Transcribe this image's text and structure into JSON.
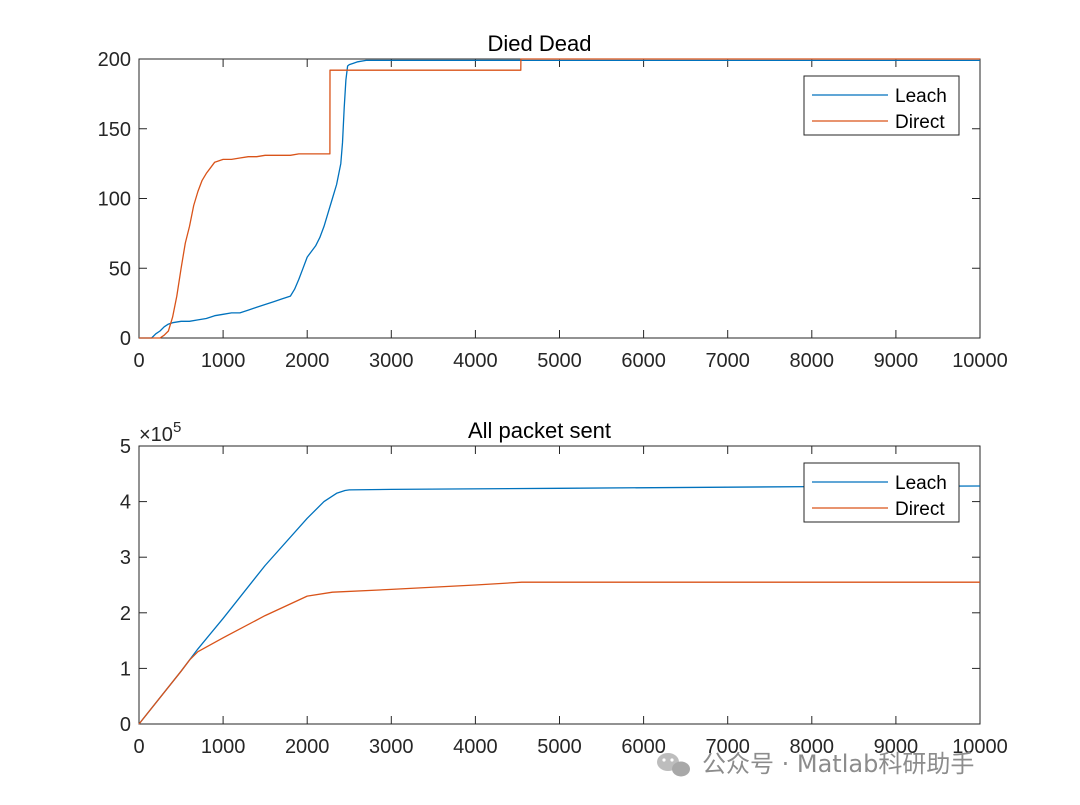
{
  "colors": {
    "leach": "#0072BD",
    "direct": "#D95319",
    "axis": "#262626"
  },
  "chart_data": [
    {
      "type": "line",
      "title": "Died Dead",
      "xlim": [
        0,
        10000
      ],
      "ylim": [
        0,
        200
      ],
      "xticks": [
        "0",
        "1000",
        "2000",
        "3000",
        "4000",
        "5000",
        "6000",
        "7000",
        "8000",
        "9000",
        "10000"
      ],
      "yticks": [
        "0",
        "50",
        "100",
        "150",
        "200"
      ],
      "legend": [
        "Leach",
        "Direct"
      ],
      "legend_position": "top-right",
      "series": [
        {
          "name": "Leach",
          "x": [
            0,
            150,
            200,
            250,
            300,
            350,
            400,
            500,
            600,
            700,
            800,
            900,
            1000,
            1100,
            1200,
            1300,
            1400,
            1500,
            1600,
            1700,
            1800,
            1850,
            1900,
            1950,
            2000,
            2050,
            2100,
            2150,
            2200,
            2250,
            2300,
            2350,
            2400,
            2420,
            2440,
            2460,
            2480,
            2500,
            2550,
            2600,
            2700,
            2800,
            3000,
            4000,
            4500,
            10000
          ],
          "y": [
            0,
            0,
            3,
            5,
            8,
            10,
            11,
            12,
            12,
            13,
            14,
            16,
            17,
            18,
            18,
            20,
            22,
            24,
            26,
            28,
            30,
            35,
            42,
            50,
            58,
            62,
            66,
            72,
            80,
            90,
            100,
            110,
            125,
            140,
            165,
            185,
            195,
            196,
            197,
            198,
            199,
            199,
            199,
            199,
            199,
            199
          ]
        },
        {
          "name": "Direct",
          "x": [
            0,
            250,
            300,
            350,
            400,
            450,
            500,
            550,
            600,
            650,
            700,
            750,
            800,
            850,
            900,
            1000,
            1100,
            1200,
            1300,
            1400,
            1500,
            1600,
            1700,
            1800,
            1900,
            2000,
            2100,
            2200,
            2270,
            2271,
            2500,
            3000,
            4000,
            4540,
            4541,
            5000,
            10000
          ],
          "y": [
            0,
            0,
            2,
            5,
            15,
            30,
            50,
            68,
            80,
            95,
            105,
            113,
            118,
            122,
            126,
            128,
            128,
            129,
            130,
            130,
            131,
            131,
            131,
            131,
            132,
            132,
            132,
            132,
            132,
            192,
            192,
            192,
            192,
            192,
            200,
            200,
            200
          ]
        }
      ]
    },
    {
      "type": "line",
      "title": "All packet sent",
      "xlim": [
        0,
        10000
      ],
      "ylim": [
        0,
        5
      ],
      "y_multiplier_base": "×10",
      "y_multiplier_exp": "5",
      "xticks": [
        "0",
        "1000",
        "2000",
        "3000",
        "4000",
        "5000",
        "6000",
        "7000",
        "8000",
        "9000",
        "10000"
      ],
      "yticks": [
        "0",
        "1",
        "2",
        "3",
        "4",
        "5"
      ],
      "legend": [
        "Leach",
        "Direct"
      ],
      "legend_position": "top-right",
      "series": [
        {
          "name": "Leach",
          "x": [
            0,
            500,
            700,
            1000,
            1500,
            2000,
            2200,
            2350,
            2450,
            2500,
            3000,
            5000,
            8000,
            10000
          ],
          "y": [
            0,
            0.95,
            1.35,
            1.9,
            2.85,
            3.7,
            4.0,
            4.15,
            4.2,
            4.21,
            4.22,
            4.24,
            4.27,
            4.28
          ]
        },
        {
          "name": "Direct",
          "x": [
            0,
            500,
            600,
            700,
            1000,
            1500,
            2000,
            2300,
            3000,
            4000,
            4550,
            5000,
            10000
          ],
          "y": [
            0,
            0.95,
            1.15,
            1.3,
            1.55,
            1.95,
            2.3,
            2.37,
            2.42,
            2.5,
            2.55,
            2.55,
            2.55
          ]
        }
      ]
    }
  ],
  "watermark": "公众号 · Matlab科研助手"
}
